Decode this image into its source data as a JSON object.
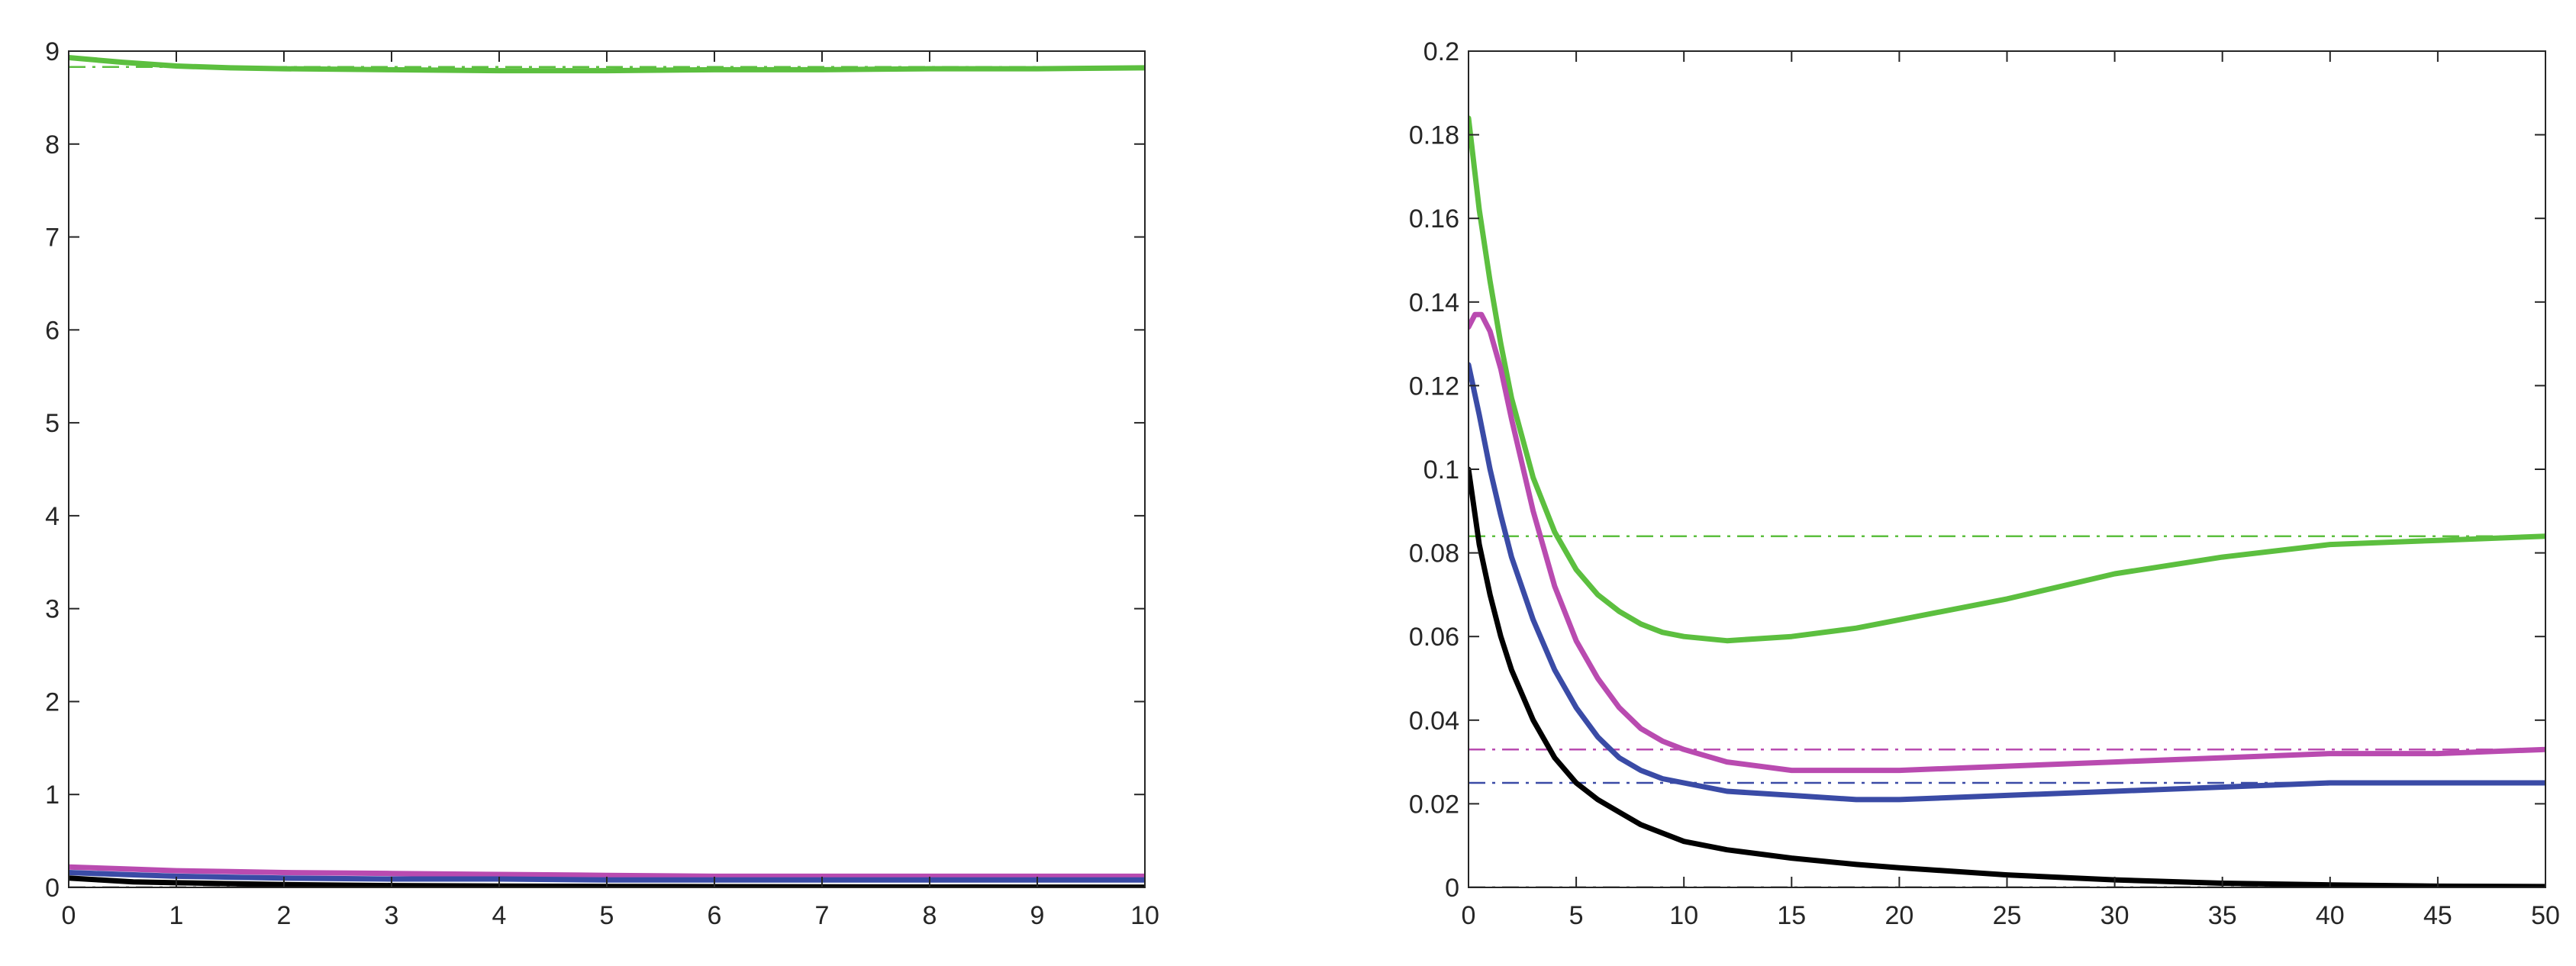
{
  "chart_data": [
    {
      "type": "line",
      "xlim": [
        0,
        10
      ],
      "ylim": [
        0,
        9
      ],
      "xticks": [
        "0",
        "1",
        "2",
        "3",
        "4",
        "5",
        "6",
        "7",
        "8",
        "9",
        "10"
      ],
      "yticks": [
        "0",
        "1",
        "2",
        "3",
        "4",
        "5",
        "6",
        "7",
        "8",
        "9"
      ],
      "grid": false,
      "series": [
        {
          "color": "#5cbf3f",
          "style": "solid",
          "x": [
            0,
            0.5,
            1,
            1.5,
            2,
            3,
            4,
            5,
            6,
            7,
            8,
            9,
            10
          ],
          "y": [
            8.93,
            8.88,
            8.84,
            8.82,
            8.81,
            8.8,
            8.79,
            8.79,
            8.8,
            8.8,
            8.81,
            8.81,
            8.82
          ]
        },
        {
          "color": "#5cbf3f",
          "style": "dashdot",
          "x": [
            0,
            10
          ],
          "y": [
            8.83,
            8.83
          ]
        },
        {
          "color": "#b94bb0",
          "style": "solid",
          "x": [
            0,
            0.5,
            1,
            1.5,
            2,
            3,
            4,
            5,
            6,
            7,
            8,
            9,
            10
          ],
          "y": [
            0.22,
            0.2,
            0.18,
            0.17,
            0.16,
            0.15,
            0.14,
            0.13,
            0.12,
            0.12,
            0.12,
            0.12,
            0.12
          ]
        },
        {
          "color": "#3a4ba6",
          "style": "solid",
          "x": [
            0,
            0.5,
            1,
            1.5,
            2,
            3,
            4,
            5,
            6,
            7,
            8,
            9,
            10
          ],
          "y": [
            0.16,
            0.14,
            0.12,
            0.11,
            0.1,
            0.09,
            0.09,
            0.08,
            0.08,
            0.08,
            0.08,
            0.08,
            0.08
          ]
        },
        {
          "color": "#000000",
          "style": "solid",
          "x": [
            0,
            0.3,
            0.6,
            1,
            1.5,
            2,
            3,
            4,
            5,
            6,
            7,
            8,
            9,
            10
          ],
          "y": [
            0.1,
            0.08,
            0.06,
            0.05,
            0.04,
            0.03,
            0.02,
            0.015,
            0.01,
            0.008,
            0.006,
            0.004,
            0.003,
            0.002
          ]
        },
        {
          "color": "#000000",
          "style": "dashdot",
          "x": [
            0,
            10
          ],
          "y": [
            0.0,
            0.0
          ]
        }
      ]
    },
    {
      "type": "line",
      "xlim": [
        0,
        50
      ],
      "ylim": [
        0,
        0.2
      ],
      "xticks": [
        "0",
        "5",
        "10",
        "15",
        "20",
        "25",
        "30",
        "35",
        "40",
        "45",
        "50"
      ],
      "yticks": [
        "0",
        "0.02",
        "0.04",
        "0.06",
        "0.08",
        "0.1",
        "0.12",
        "0.14",
        "0.16",
        "0.18",
        "0.2"
      ],
      "grid": false,
      "series": [
        {
          "color": "#5cbf3f",
          "style": "dashdot",
          "x": [
            0,
            50
          ],
          "y": [
            0.084,
            0.084
          ]
        },
        {
          "color": "#b94bb0",
          "style": "dashdot",
          "x": [
            0,
            50
          ],
          "y": [
            0.033,
            0.033
          ]
        },
        {
          "color": "#3a4ba6",
          "style": "dashdot",
          "x": [
            0,
            50
          ],
          "y": [
            0.025,
            0.025
          ]
        },
        {
          "color": "#000000",
          "style": "dashdot",
          "x": [
            0,
            50
          ],
          "y": [
            0.0,
            0.0
          ]
        },
        {
          "color": "#5cbf3f",
          "style": "solid",
          "x": [
            0,
            0.5,
            1,
            1.5,
            2,
            3,
            4,
            5,
            6,
            7,
            8,
            9,
            10,
            12,
            15,
            18,
            20,
            25,
            30,
            35,
            40,
            45,
            50
          ],
          "y": [
            0.184,
            0.162,
            0.145,
            0.13,
            0.117,
            0.098,
            0.085,
            0.076,
            0.07,
            0.066,
            0.063,
            0.061,
            0.06,
            0.059,
            0.06,
            0.062,
            0.064,
            0.069,
            0.075,
            0.079,
            0.082,
            0.083,
            0.084
          ]
        },
        {
          "color": "#b94bb0",
          "style": "solid",
          "x": [
            0,
            0.3,
            0.6,
            1,
            1.5,
            2,
            3,
            4,
            5,
            6,
            7,
            8,
            9,
            10,
            12,
            15,
            18,
            20,
            25,
            30,
            35,
            40,
            45,
            50
          ],
          "y": [
            0.134,
            0.137,
            0.137,
            0.133,
            0.124,
            0.112,
            0.09,
            0.072,
            0.059,
            0.05,
            0.043,
            0.038,
            0.035,
            0.033,
            0.03,
            0.028,
            0.028,
            0.028,
            0.029,
            0.03,
            0.031,
            0.032,
            0.032,
            0.033
          ]
        },
        {
          "color": "#3a4ba6",
          "style": "solid",
          "x": [
            0,
            0.5,
            1,
            1.5,
            2,
            3,
            4,
            5,
            6,
            7,
            8,
            9,
            10,
            12,
            15,
            18,
            20,
            25,
            30,
            35,
            40,
            45,
            50
          ],
          "y": [
            0.125,
            0.113,
            0.1,
            0.089,
            0.079,
            0.064,
            0.052,
            0.043,
            0.036,
            0.031,
            0.028,
            0.026,
            0.025,
            0.023,
            0.022,
            0.021,
            0.021,
            0.022,
            0.023,
            0.024,
            0.025,
            0.025,
            0.025
          ]
        },
        {
          "color": "#000000",
          "style": "solid",
          "x": [
            0,
            0.5,
            1,
            1.5,
            2,
            3,
            4,
            5,
            6,
            7,
            8,
            9,
            10,
            12,
            15,
            18,
            20,
            25,
            30,
            35,
            40,
            45,
            50
          ],
          "y": [
            0.1,
            0.082,
            0.07,
            0.06,
            0.052,
            0.04,
            0.031,
            0.025,
            0.021,
            0.018,
            0.015,
            0.013,
            0.011,
            0.009,
            0.007,
            0.0055,
            0.0047,
            0.003,
            0.0018,
            0.001,
            0.0006,
            0.0003,
            0.0002
          ]
        }
      ]
    }
  ]
}
